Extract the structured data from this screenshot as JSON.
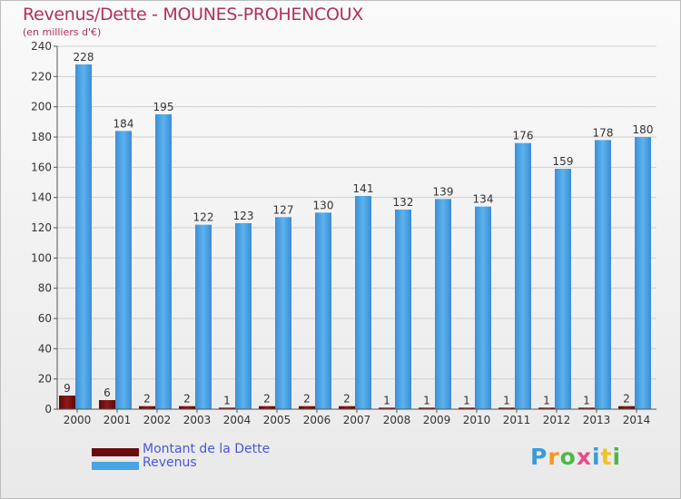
{
  "title": "Revenus/Dette - MOUNES-PROHENCOUX",
  "subtitle": "(en milliers d'€)",
  "brand": "Proxiti",
  "colors": {
    "title": "#b0305a",
    "legend_text": "#4a56d8",
    "dette_bar": "#7a1010",
    "revenus_bar": "#4aa3e3",
    "grid": "#d0d0d0",
    "axis_text": "#333333"
  },
  "legend": [
    {
      "label": "Montant de la Dette",
      "color": "#6b0d0d"
    },
    {
      "label": "Revenus",
      "color": "#4aa3e3"
    }
  ],
  "chart_data": {
    "type": "bar",
    "title": "Revenus/Dette - MOUNES-PROHENCOUX",
    "subtitle": "(en milliers d'€)",
    "categories": [
      "2000",
      "2001",
      "2002",
      "2003",
      "2004",
      "2005",
      "2006",
      "2007",
      "2008",
      "2009",
      "2010",
      "2011",
      "2012",
      "2013",
      "2014"
    ],
    "series": [
      {
        "name": "Montant de la Dette",
        "values": [
          9,
          6,
          2,
          2,
          1,
          2,
          2,
          2,
          1,
          1,
          1,
          1,
          1,
          1,
          2
        ]
      },
      {
        "name": "Revenus",
        "values": [
          228,
          184,
          195,
          122,
          123,
          127,
          130,
          141,
          132,
          139,
          134,
          176,
          159,
          178,
          180
        ]
      }
    ],
    "ylim": [
      0,
      240
    ],
    "yticks": [
      0,
      20,
      40,
      60,
      80,
      100,
      120,
      140,
      160,
      180,
      200,
      220,
      240
    ],
    "grid": true,
    "legend_position": "bottom-left"
  }
}
